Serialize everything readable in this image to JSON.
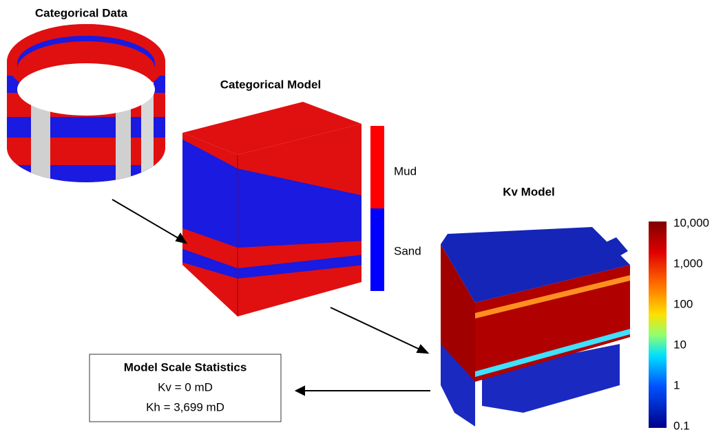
{
  "panels": {
    "categorical_data": {
      "title": "Categorical Data"
    },
    "categorical_model": {
      "title": "Categorical Model",
      "legend": [
        "Mud",
        "Sand"
      ]
    },
    "kv_model": {
      "title": "Kv Model",
      "colorbar_labels": [
        "10,000",
        "1,000",
        "100",
        "10",
        "1",
        "0.1"
      ]
    }
  },
  "statistics": {
    "title": "Model Scale Statistics",
    "lines": [
      "Kv = 0 mD",
      "Kh = 3,699 mD"
    ]
  }
}
